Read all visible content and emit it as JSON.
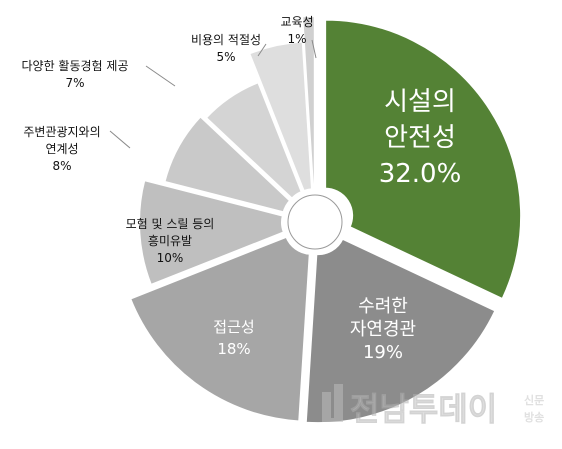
{
  "chart_data": {
    "type": "pie",
    "title": "",
    "style": "exploded-donut",
    "slices": [
      {
        "label_lines": [
          "시설의",
          "안전성"
        ],
        "value_label": "32.0%",
        "value": 32.0,
        "color": "#548235",
        "text_color": "#ffffff"
      },
      {
        "label_lines": [
          "수려한",
          "자연경관"
        ],
        "value_label": "19%",
        "value": 19,
        "color": "#8c8c8c",
        "text_color": "#ffffff"
      },
      {
        "label_lines": [
          "접근성"
        ],
        "value_label": "18%",
        "value": 18,
        "color": "#a6a6a6",
        "text_color": "#ffffff"
      },
      {
        "label_lines": [
          "모험 및 스릴 등의",
          "흥미유발"
        ],
        "value_label": "10%",
        "value": 10,
        "color": "#bfbfbf",
        "text_color": "#111111"
      },
      {
        "label_lines": [
          "주변관광지와의",
          "연계성"
        ],
        "value_label": "8%",
        "value": 8,
        "color": "#c9c9c9",
        "text_color": "#111111"
      },
      {
        "label_lines": [
          "다양한 활동경험 제공"
        ],
        "value_label": "7%",
        "value": 7,
        "color": "#d4d4d4",
        "text_color": "#111111"
      },
      {
        "label_lines": [
          "비용의 적절성"
        ],
        "value_label": "5%",
        "value": 5,
        "color": "#dedede",
        "text_color": "#111111"
      },
      {
        "label_lines": [
          "교육성"
        ],
        "value_label": "1%",
        "value": 1,
        "color": "#d0d0d0",
        "text_color": "#111111"
      }
    ]
  },
  "watermark": {
    "logo_text": "전남투데이",
    "side_text_top": "신문",
    "side_text_bottom": "방송",
    "color": "#c8c8c8"
  }
}
